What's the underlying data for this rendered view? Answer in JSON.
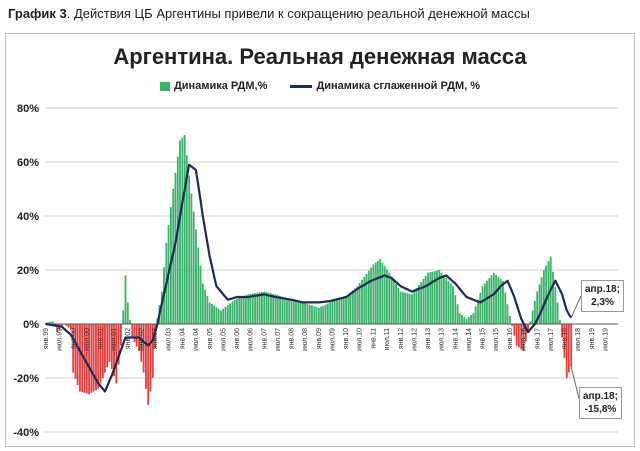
{
  "caption": {
    "prefix": "График 3",
    "text": ". Действия ЦБ Аргентины привели к сокращению реальной денежной массы"
  },
  "colors": {
    "positive": "#3bb36a",
    "negative": "#e63d3d",
    "line": "#1f2a56",
    "grid": "#d0d0d0"
  },
  "chart_data": {
    "type": "bar",
    "title": "Аргентина. Реальная денежная масса",
    "legend_position": "top",
    "grid": true,
    "ylim": [
      -40,
      80
    ],
    "yticks": [
      -40,
      -20,
      0,
      20,
      40,
      60,
      80
    ],
    "ytick_labels": [
      "-40%",
      "-20%",
      "0%",
      "20%",
      "40%",
      "60%",
      "80%"
    ],
    "xtick_labels": [
      "янв.99",
      "июл.99",
      "янв.00",
      "июл.00",
      "янв.01",
      "июл.01",
      "янв.02",
      "июл.02",
      "янв.03",
      "июл.03",
      "янв.04",
      "июл.04",
      "янв.05",
      "июл.05",
      "янв.06",
      "июл.06",
      "янв.07",
      "июл.07",
      "янв.08",
      "июл.08",
      "янв.09",
      "июл.09",
      "янв.10",
      "июл.10",
      "янв.11",
      "июл.11",
      "янв.12",
      "июл.12",
      "янв.13",
      "июл.13",
      "янв.14",
      "июл.14",
      "янв.15",
      "июл.15",
      "янв.16",
      "июл.16",
      "янв.17",
      "июл.17",
      "янв.18",
      "июл.18",
      "янв.19",
      "июл.19"
    ],
    "series": [
      {
        "name": "Динамика РДМ,%",
        "kind": "bar",
        "knots": [
          [
            "1999-01",
            0.5
          ],
          [
            "1999-04",
            1
          ],
          [
            "1999-06",
            -3
          ],
          [
            "1999-09",
            0
          ],
          [
            "1999-12",
            -2
          ],
          [
            "2000-01",
            -18
          ],
          [
            "2000-04",
            -25
          ],
          [
            "2000-08",
            -26
          ],
          [
            "2000-12",
            -24
          ],
          [
            "2001-02",
            -20
          ],
          [
            "2001-05",
            -14
          ],
          [
            "2001-08",
            -22
          ],
          [
            "2001-10",
            -8
          ],
          [
            "2001-11",
            5
          ],
          [
            "2001-12",
            18
          ],
          [
            "2002-01",
            8
          ],
          [
            "2002-03",
            -5
          ],
          [
            "2002-06",
            -10
          ],
          [
            "2002-08",
            -18
          ],
          [
            "2002-10",
            -30
          ],
          [
            "2002-12",
            -20
          ],
          [
            "2003-02",
            2
          ],
          [
            "2003-04",
            12
          ],
          [
            "2003-06",
            30
          ],
          [
            "2003-09",
            50
          ],
          [
            "2003-12",
            68
          ],
          [
            "2004-02",
            70
          ],
          [
            "2004-04",
            55
          ],
          [
            "2004-07",
            35
          ],
          [
            "2004-10",
            15
          ],
          [
            "2005-01",
            8
          ],
          [
            "2005-06",
            5
          ],
          [
            "2005-12",
            9
          ],
          [
            "2006-06",
            11
          ],
          [
            "2007-01",
            12
          ],
          [
            "2007-06",
            11
          ],
          [
            "2008-01",
            9
          ],
          [
            "2008-06",
            8
          ],
          [
            "2009-01",
            6
          ],
          [
            "2009-06",
            8
          ],
          [
            "2010-01",
            10
          ],
          [
            "2010-06",
            14
          ],
          [
            "2011-01",
            22
          ],
          [
            "2011-04",
            24
          ],
          [
            "2011-08",
            19
          ],
          [
            "2012-01",
            12
          ],
          [
            "2012-06",
            11
          ],
          [
            "2013-01",
            19
          ],
          [
            "2013-06",
            20
          ],
          [
            "2013-12",
            14
          ],
          [
            "2014-03",
            4
          ],
          [
            "2014-06",
            2
          ],
          [
            "2014-09",
            4
          ],
          [
            "2015-01",
            14
          ],
          [
            "2015-06",
            19
          ],
          [
            "2015-10",
            16
          ],
          [
            "2016-01",
            3
          ],
          [
            "2016-04",
            -8
          ],
          [
            "2016-07",
            -10
          ],
          [
            "2016-09",
            -3
          ],
          [
            "2016-11",
            5
          ],
          [
            "2017-01",
            12
          ],
          [
            "2017-04",
            20
          ],
          [
            "2017-07",
            25
          ],
          [
            "2017-10",
            8
          ],
          [
            "2017-12",
            -5
          ],
          [
            "2018-02",
            -20
          ],
          [
            "2018-04",
            -15.8
          ]
        ]
      },
      {
        "name": "Динамика сглаженной РДМ, %",
        "kind": "line",
        "knots": [
          [
            "1999-01",
            0
          ],
          [
            "1999-08",
            -1
          ],
          [
            "1999-12",
            -4
          ],
          [
            "2000-06",
            -13
          ],
          [
            "2000-12",
            -22
          ],
          [
            "2001-03",
            -25
          ],
          [
            "2001-06",
            -19
          ],
          [
            "2001-09",
            -12
          ],
          [
            "2001-12",
            -5
          ],
          [
            "2002-06",
            -5
          ],
          [
            "2002-10",
            -8
          ],
          [
            "2002-12",
            -6
          ],
          [
            "2003-02",
            0
          ],
          [
            "2003-06",
            15
          ],
          [
            "2003-10",
            30
          ],
          [
            "2004-01",
            45
          ],
          [
            "2004-04",
            59
          ],
          [
            "2004-07",
            57
          ],
          [
            "2004-10",
            40
          ],
          [
            "2005-01",
            25
          ],
          [
            "2005-04",
            14
          ],
          [
            "2005-09",
            9
          ],
          [
            "2006-01",
            10
          ],
          [
            "2006-06",
            10
          ],
          [
            "2007-01",
            11
          ],
          [
            "2007-06",
            10
          ],
          [
            "2008-01",
            9
          ],
          [
            "2008-06",
            8
          ],
          [
            "2009-01",
            8
          ],
          [
            "2009-06",
            8.5
          ],
          [
            "2010-01",
            10
          ],
          [
            "2010-06",
            13
          ],
          [
            "2010-12",
            16
          ],
          [
            "2011-06",
            18
          ],
          [
            "2011-09",
            17
          ],
          [
            "2012-01",
            14
          ],
          [
            "2012-06",
            12
          ],
          [
            "2012-12",
            14
          ],
          [
            "2013-06",
            17
          ],
          [
            "2013-09",
            18
          ],
          [
            "2014-01",
            15
          ],
          [
            "2014-06",
            10
          ],
          [
            "2014-12",
            8
          ],
          [
            "2015-06",
            11
          ],
          [
            "2015-09",
            14
          ],
          [
            "2015-12",
            16
          ],
          [
            "2016-03",
            10
          ],
          [
            "2016-06",
            2
          ],
          [
            "2016-09",
            -3
          ],
          [
            "2016-12",
            0
          ],
          [
            "2017-03",
            5
          ],
          [
            "2017-06",
            11
          ],
          [
            "2017-09",
            16
          ],
          [
            "2017-12",
            11
          ],
          [
            "2018-02",
            5
          ],
          [
            "2018-04",
            2.3
          ]
        ]
      }
    ],
    "annotations": [
      {
        "id": "line-end",
        "date": "2018-04",
        "text_line1": "апр.18;",
        "text_line2": "2,3%"
      },
      {
        "id": "bar-end",
        "date": "2018-04",
        "text_line1": "апр.18;",
        "text_line2": "-15,8%"
      }
    ]
  }
}
